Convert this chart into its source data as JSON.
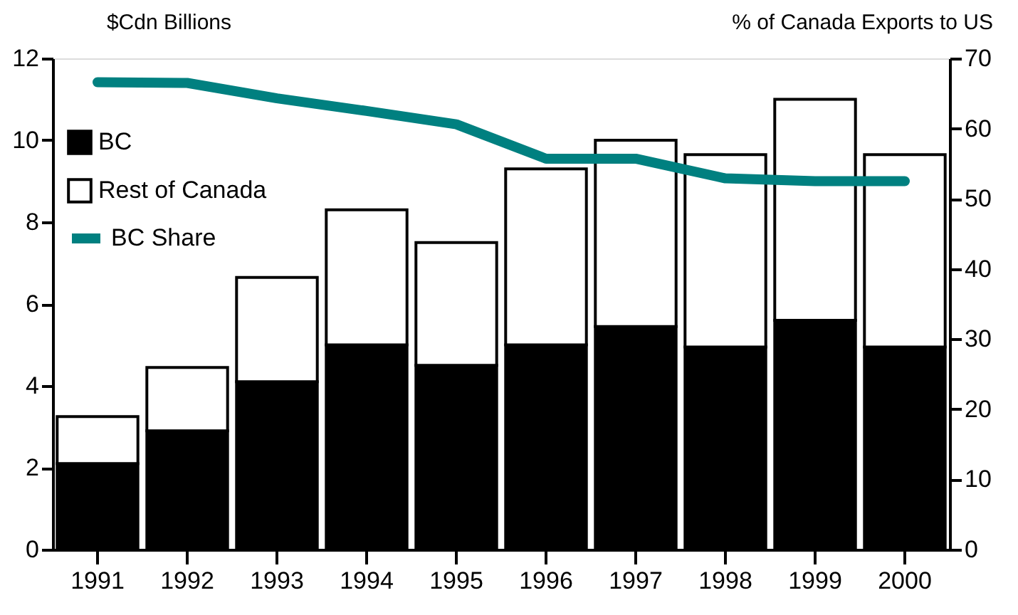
{
  "chart_data": {
    "type": "bar",
    "stacked": true,
    "categories": [
      "1991",
      "1992",
      "1993",
      "1994",
      "1995",
      "1996",
      "1997",
      "1998",
      "1999",
      "2000"
    ],
    "series": [
      {
        "name": "BC",
        "color": "#000000",
        "values": [
          2.1,
          2.9,
          4.1,
          5.0,
          4.5,
          5.0,
          5.45,
          4.95,
          5.6,
          4.95
        ]
      },
      {
        "name": "Rest of Canada",
        "color": "#ffffff",
        "values": [
          1.15,
          1.55,
          2.55,
          3.3,
          3.0,
          4.3,
          4.55,
          4.7,
          5.4,
          4.7
        ]
      },
      {
        "name": "BC Share",
        "type": "line",
        "axis": "y2",
        "color": "#008080",
        "values": [
          66.6,
          66.5,
          64.3,
          62.5,
          60.6,
          55.7,
          55.7,
          52.9,
          52.5,
          52.5
        ]
      }
    ],
    "ylabel": "$Cdn Billions",
    "y2label": "% of Canada Exports to US",
    "ylim": [
      0,
      12
    ],
    "yticks": [
      0,
      2,
      4,
      6,
      8,
      10,
      12
    ],
    "y2lim": [
      0,
      70
    ],
    "y2ticks": [
      0,
      10,
      20,
      30,
      40,
      50,
      60,
      70
    ],
    "grid": false,
    "legend": "top left",
    "line_style": "solid",
    "marker": "none"
  }
}
